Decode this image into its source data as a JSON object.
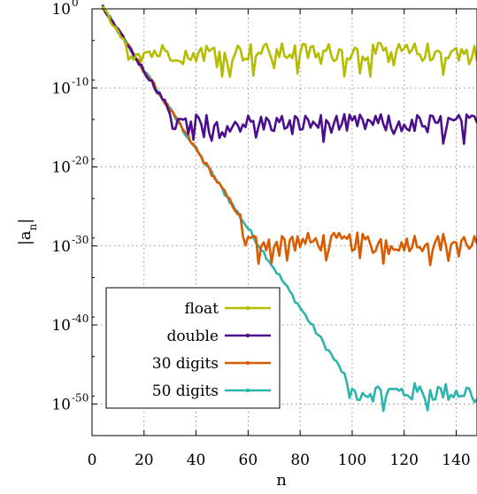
{
  "chart_data": {
    "type": "line",
    "title": "",
    "xlabel": "n",
    "ylabel_base": "|a",
    "ylabel_sub": "n",
    "ylabel_end": "|",
    "xlim": [
      0,
      148
    ],
    "ylim_log10": [
      -54,
      0
    ],
    "y_scale": "log",
    "grid": "dotted",
    "legend_position": "lower-left",
    "x_ticks": [
      0,
      20,
      40,
      60,
      80,
      100,
      120,
      140
    ],
    "y_ticks": [
      {
        "base": "10",
        "exp": "0",
        "value": 0
      },
      {
        "base": "10",
        "exp": "-10",
        "value": -10
      },
      {
        "base": "10",
        "exp": "-20",
        "value": -20
      },
      {
        "base": "10",
        "exp": "-30",
        "value": -30
      },
      {
        "base": "10",
        "exp": "-40",
        "value": -40
      },
      {
        "base": "10",
        "exp": "-50",
        "value": -50
      }
    ],
    "series": [
      {
        "name": "float",
        "color": "#b5bd00",
        "decay_to_x": 13,
        "plateau_log10": -5.5,
        "noise": 1.2
      },
      {
        "name": "double",
        "color": "#4b0e8c",
        "decay_to_x": 29,
        "plateau_log10": -14.5,
        "noise": 1.2
      },
      {
        "name": "30 digits",
        "color": "#d95b00",
        "decay_to_x": 57,
        "plateau_log10": -29.5,
        "noise": 1.2
      },
      {
        "name": "50 digits",
        "color": "#2bb5ad",
        "decay_to_x": 97,
        "plateau_log10": -48.5,
        "noise": 1.2
      }
    ],
    "decay": {
      "start_x": 4,
      "start_log10": 0.2,
      "slope_per_n": -0.5
    }
  }
}
